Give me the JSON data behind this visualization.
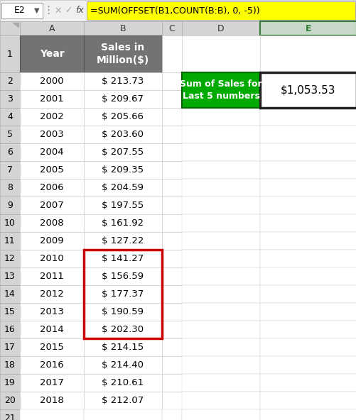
{
  "formula_bar_cell": "E2",
  "formula_bar_text": "=SUM(OFFSET(B1,COUNT(B:B), 0, -5))",
  "years": [
    2000,
    2001,
    2002,
    2003,
    2004,
    2005,
    2006,
    2007,
    2008,
    2009,
    2010,
    2011,
    2012,
    2013,
    2014,
    2015,
    2016,
    2017,
    2018
  ],
  "sales": [
    "$ 213.73",
    "$ 209.67",
    "$ 205.66",
    "$ 203.60",
    "$ 207.55",
    "$ 209.35",
    "$ 204.59",
    "$ 197.55",
    "$ 161.92",
    "$ 127.22",
    "$ 141.27",
    "$ 156.59",
    "$ 177.37",
    "$ 190.59",
    "$ 202.30",
    "$ 214.15",
    "$ 214.40",
    "$ 210.61",
    "$ 212.07"
  ],
  "label_text": "Sum of Sales for\nLast 5 numbers",
  "result_text": "$1,053.53",
  "col_A_header_bg": "#737373",
  "col_B_header_bg": "#737373",
  "label_bg": "#00AA00",
  "formula_bar_bg": "#FFFF00",
  "highlight_border_color": "#CC0000",
  "header_text_color": "#FFFFFF",
  "row_num_bg": "#D4D4D4",
  "col_header_bg": "#D4D4D4",
  "col_E_header_bg": "#C8D8C8",
  "col_E_header_border": "#3A7A3A",
  "toolbar_bg": "#F0F0F0"
}
